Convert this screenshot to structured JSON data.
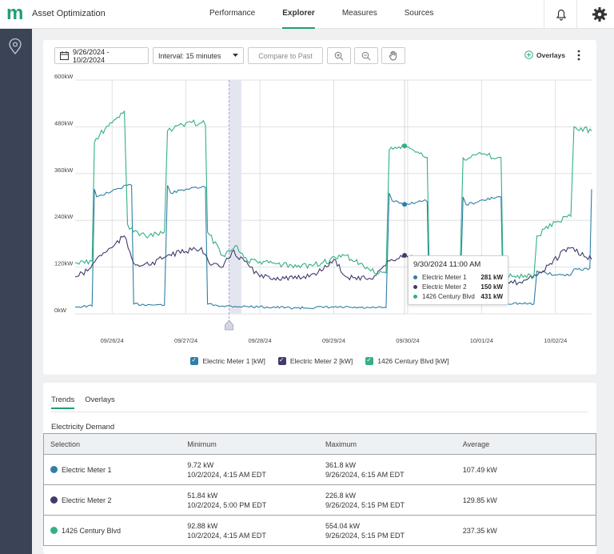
{
  "app": {
    "title": "Asset Optimization",
    "logo": "m"
  },
  "nav": {
    "tabs": [
      "Performance",
      "Explorer",
      "Measures",
      "Sources"
    ],
    "active": "Explorer"
  },
  "toolbar": {
    "date_range": "9/26/2024 - 10/2/2024",
    "interval": "Interval: 15 minutes",
    "compare": "Compare to Past",
    "overlays": "Overlays",
    "icons": [
      "calendar-icon",
      "zoom-in-icon",
      "zoom-out-icon",
      "pan-hand-icon",
      "plus-circle-icon",
      "kebab-menu-icon",
      "chevron-down-icon"
    ]
  },
  "colors": {
    "meter1": "#2f7fa6",
    "meter2": "#3f3b6b",
    "blvd": "#33b083",
    "accent": "#1f9e77",
    "sidebar": "#3a4456"
  },
  "chart_data": {
    "type": "line",
    "ylabel_unit": "kW",
    "y_ticks": [
      "600kW",
      "480kW",
      "360kW",
      "240kW",
      "120kW",
      "0kW"
    ],
    "ylim": [
      0,
      600
    ],
    "x_ticks": [
      "09/26/24",
      "09/27/24",
      "09/28/24",
      "09/29/24",
      "09/30/24",
      "10/01/24",
      "10/02/24"
    ],
    "xlim": [
      "2024-09-26T00:00",
      "2024-10-02T23:45"
    ],
    "grid": true,
    "highlight_window": [
      "2024-09-28T02:00",
      "2024-09-28T06:00"
    ],
    "marker_time": "2024-09-28T02:00",
    "series": [
      {
        "name": "Electric Meter 1 [kW]",
        "key": "meter1",
        "x": [
          "2024-09-26T00:00",
          "2024-09-26T05:30",
          "2024-09-26T06:15",
          "2024-09-26T07:00",
          "2024-09-26T12:00",
          "2024-09-26T17:00",
          "2024-09-26T19:00",
          "2024-09-27T05:00",
          "2024-09-27T06:00",
          "2024-09-27T07:00",
          "2024-09-27T12:00",
          "2024-09-27T17:00",
          "2024-09-27T19:00",
          "2024-09-28T00:00",
          "2024-09-28T12:00",
          "2024-09-29T00:00",
          "2024-09-29T12:00",
          "2024-09-30T00:00",
          "2024-09-30T05:00",
          "2024-09-30T06:00",
          "2024-09-30T07:00",
          "2024-09-30T11:00",
          "2024-09-30T17:00",
          "2024-09-30T19:00",
          "2024-10-01T05:00",
          "2024-10-01T06:00",
          "2024-10-01T07:00",
          "2024-10-01T17:00",
          "2024-10-01T19:00",
          "2024-10-02T05:00",
          "2024-10-02T06:00",
          "2024-10-02T12:00",
          "2024-10-02T17:00",
          "2024-10-02T18:00",
          "2024-10-02T23:45"
        ],
        "y": [
          18,
          20,
          320,
          300,
          315,
          330,
          25,
          22,
          330,
          310,
          320,
          325,
          25,
          20,
          18,
          15,
          17,
          15,
          16,
          310,
          290,
          281,
          290,
          30,
          25,
          300,
          280,
          300,
          28,
          25,
          110,
          100,
          100,
          115,
          320
        ]
      },
      {
        "name": "Electric Meter 2 [kW]",
        "key": "meter2",
        "x": [
          "2024-09-26T00:00",
          "2024-09-26T04:00",
          "2024-09-26T08:00",
          "2024-09-26T12:00",
          "2024-09-26T16:00",
          "2024-09-26T19:00",
          "2024-09-27T00:00",
          "2024-09-27T06:00",
          "2024-09-27T12:00",
          "2024-09-27T17:00",
          "2024-09-27T20:00",
          "2024-09-28T00:00",
          "2024-09-28T03:00",
          "2024-09-28T07:00",
          "2024-09-28T12:00",
          "2024-09-29T00:00",
          "2024-09-29T08:00",
          "2024-09-29T12:00",
          "2024-09-29T16:00",
          "2024-09-30T00:00",
          "2024-09-30T06:00",
          "2024-09-30T11:00",
          "2024-09-30T18:00",
          "2024-10-01T00:00",
          "2024-10-01T06:00",
          "2024-10-01T12:00",
          "2024-10-01T18:00",
          "2024-10-02T00:00",
          "2024-10-02T08:00",
          "2024-10-02T16:00",
          "2024-10-02T23:45"
        ],
        "y": [
          95,
          110,
          150,
          170,
          200,
          130,
          125,
          150,
          160,
          170,
          125,
          120,
          160,
          135,
          95,
          90,
          110,
          140,
          95,
          90,
          135,
          150,
          130,
          120,
          90,
          90,
          80,
          80,
          110,
          170,
          140
        ]
      },
      {
        "name": "1426 Century Blvd [kW]",
        "key": "blvd",
        "x": [
          "2024-09-26T00:00",
          "2024-09-26T05:30",
          "2024-09-26T06:15",
          "2024-09-26T08:00",
          "2024-09-26T12:00",
          "2024-09-26T16:00",
          "2024-09-26T17:00",
          "2024-09-26T19:00",
          "2024-09-27T00:00",
          "2024-09-27T05:00",
          "2024-09-27T06:00",
          "2024-09-27T08:00",
          "2024-09-27T12:00",
          "2024-09-27T17:00",
          "2024-09-27T19:00",
          "2024-09-28T00:00",
          "2024-09-28T04:00",
          "2024-09-28T08:00",
          "2024-09-28T16:00",
          "2024-09-29T00:00",
          "2024-09-29T08:00",
          "2024-09-29T16:00",
          "2024-09-30T00:00",
          "2024-09-30T05:00",
          "2024-09-30T06:00",
          "2024-09-30T11:00",
          "2024-09-30T17:00",
          "2024-09-30T19:00",
          "2024-10-01T05:00",
          "2024-10-01T06:00",
          "2024-10-01T12:00",
          "2024-10-01T17:00",
          "2024-10-01T19:00",
          "2024-10-02T05:00",
          "2024-10-02T06:00",
          "2024-10-02T12:00",
          "2024-10-02T17:00",
          "2024-10-02T18:00",
          "2024-10-02T23:45"
        ],
        "y": [
          130,
          135,
          440,
          460,
          490,
          520,
          230,
          210,
          200,
          210,
          470,
          475,
          490,
          490,
          210,
          150,
          175,
          135,
          130,
          120,
          130,
          150,
          110,
          105,
          420,
          431,
          405,
          120,
          110,
          400,
          410,
          400,
          100,
          95,
          200,
          235,
          250,
          480,
          470
        ]
      }
    ],
    "hover": {
      "time": "9/30/2024 11:00 AM",
      "at": "2024-09-30T11:00",
      "rows": [
        {
          "name": "Electric Meter 1",
          "value": "281 kW",
          "key": "meter1"
        },
        {
          "name": "Electric Meter 2",
          "value": "150 kW",
          "key": "meter2"
        },
        {
          "name": "1426 Century Blvd",
          "value": "431 kW",
          "key": "blvd"
        }
      ]
    }
  },
  "legend": [
    "Electric Meter 1 [kW]",
    "Electric Meter 2 [kW]",
    "1426 Century Blvd [kW]"
  ],
  "bottom": {
    "tabs": [
      "Trends",
      "Overlays"
    ],
    "section_title": "Electricity Demand",
    "columns": [
      "Selection",
      "Minimum",
      "Maximum",
      "Average"
    ],
    "rows": [
      {
        "name": "Electric Meter 1",
        "key": "meter1",
        "min_value": "9.72 kW",
        "min_time": "10/2/2024, 4:15 AM EDT",
        "max_value": "361.8 kW",
        "max_time": "9/26/2024, 6:15 AM EDT",
        "avg": "107.49 kW"
      },
      {
        "name": "Electric Meter 2",
        "key": "meter2",
        "min_value": "51.84 kW",
        "min_time": "10/2/2024, 5:00 PM EDT",
        "max_value": "226.8 kW",
        "max_time": "9/26/2024, 5:15 PM EDT",
        "avg": "129.85 kW"
      },
      {
        "name": "1426 Century Blvd",
        "key": "blvd",
        "min_value": "92.88 kW",
        "min_time": "10/2/2024, 4:15 AM EDT",
        "max_value": "554.04 kW",
        "max_time": "9/26/2024, 5:15 PM EDT",
        "avg": "237.35 kW"
      }
    ]
  }
}
